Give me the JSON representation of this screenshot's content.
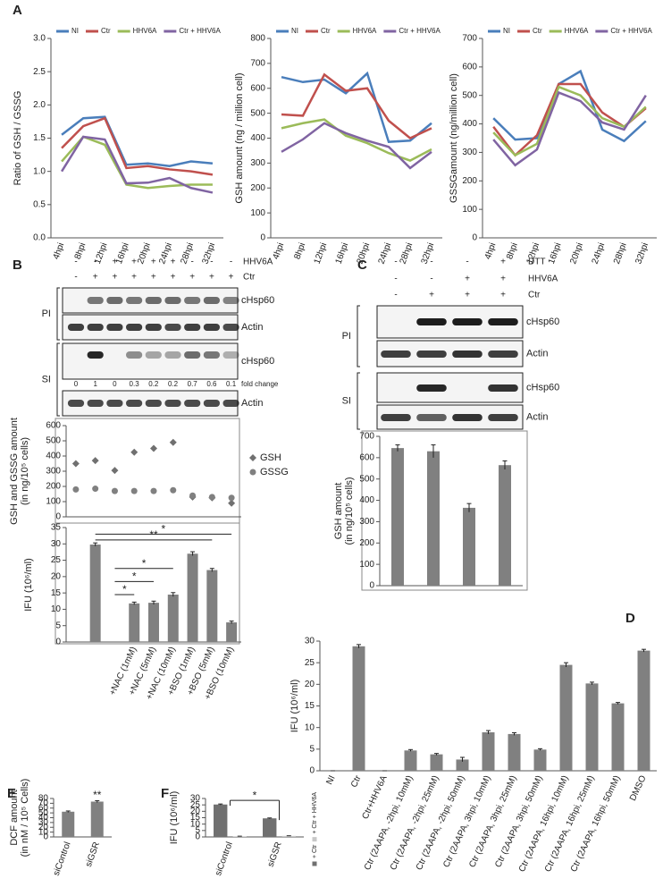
{
  "panel_labels": [
    "A",
    "B",
    "C",
    "D",
    "E",
    "F"
  ],
  "chart_data": [
    {
      "type": "line",
      "ylabel": [
        "Ratio of GSH / GSSG"
      ],
      "categories": [
        "4hpi",
        "8hpi",
        "12hpi",
        "16hpi",
        "20hpi",
        "24hpi",
        "28hpi",
        "32hpi"
      ],
      "ylim": [
        0,
        3
      ],
      "yticks": [
        {
          "value": 0,
          "label": "0.0"
        },
        {
          "value": 0.5,
          "label": "0.5"
        },
        {
          "value": 1,
          "label": "1.0"
        },
        {
          "value": 1.5,
          "label": "1.5"
        },
        {
          "value": 2,
          "label": "2.0"
        },
        {
          "value": 2.5,
          "label": "2.5"
        },
        {
          "value": 3,
          "label": "3.0"
        }
      ],
      "legend": "top",
      "series": [
        {
          "name": "NI",
          "color": "#4a7ebb",
          "values": [
            1.55,
            1.8,
            1.82,
            1.1,
            1.12,
            1.08,
            1.15,
            1.12
          ]
        },
        {
          "name": "Ctr",
          "color": "#c0504d",
          "values": [
            1.35,
            1.68,
            1.8,
            1.05,
            1.08,
            1.03,
            1.0,
            0.95
          ]
        },
        {
          "name": "HHV6A",
          "color": "#9bbb59",
          "values": [
            1.15,
            1.52,
            1.4,
            0.8,
            0.75,
            0.78,
            0.8,
            0.8
          ]
        },
        {
          "name": "Ctr + HHV6A",
          "color": "#8064a2",
          "values": [
            1.0,
            1.52,
            1.48,
            0.82,
            0.83,
            0.9,
            0.75,
            0.68
          ]
        }
      ]
    },
    {
      "type": "line",
      "ylabel": [
        "GSH amount (ng / million cell)"
      ],
      "categories": [
        "4hpi",
        "8hpi",
        "12hpi",
        "16hpi",
        "20hpi",
        "24hpi",
        "28hpi",
        "32hpi"
      ],
      "ylim": [
        0,
        800
      ],
      "yticks": [
        0,
        100,
        200,
        300,
        400,
        500,
        600,
        700,
        800
      ],
      "legend": "top",
      "series": [
        {
          "name": "NI",
          "color": "#4a7ebb",
          "values": [
            645,
            625,
            635,
            580,
            660,
            385,
            390,
            460
          ]
        },
        {
          "name": "Ctr",
          "color": "#c0504d",
          "values": [
            495,
            490,
            655,
            590,
            600,
            470,
            400,
            440
          ]
        },
        {
          "name": "HHV6A",
          "color": "#9bbb59",
          "values": [
            440,
            460,
            475,
            410,
            380,
            340,
            310,
            355
          ]
        },
        {
          "name": "Ctr + HHV6A",
          "color": "#8064a2",
          "values": [
            345,
            395,
            460,
            420,
            390,
            365,
            280,
            345
          ]
        }
      ]
    },
    {
      "type": "line",
      "ylabel": [
        "GSSGamount (ng/million cell)"
      ],
      "categories": [
        "4hpi",
        "8hpi",
        "12hpi",
        "16hpi",
        "20hpi",
        "24hpi",
        "28hpi",
        "32hpi"
      ],
      "ylim": [
        0,
        700
      ],
      "yticks": [
        0,
        100,
        200,
        300,
        400,
        500,
        600,
        700
      ],
      "legend": "top",
      "series": [
        {
          "name": "NI",
          "color": "#4a7ebb",
          "values": [
            420,
            345,
            350,
            540,
            585,
            380,
            340,
            410
          ]
        },
        {
          "name": "Ctr",
          "color": "#c0504d",
          "values": [
            390,
            290,
            360,
            540,
            540,
            440,
            390,
            455
          ]
        },
        {
          "name": "HHV6A",
          "color": "#9bbb59",
          "values": [
            370,
            290,
            330,
            530,
            500,
            420,
            390,
            460
          ]
        },
        {
          "name": "Ctr + HHV6A",
          "color": "#8064a2",
          "values": [
            345,
            255,
            310,
            510,
            480,
            405,
            380,
            500
          ]
        }
      ]
    },
    {
      "type": "scatter",
      "ylabel": [
        "GSH and GSSG amount",
        "(in ng/10⁵ cells)"
      ],
      "categories": [
        null,
        null,
        null,
        null,
        null,
        null,
        null,
        null,
        null
      ],
      "ylim": [
        0,
        600
      ],
      "yticks": [
        0,
        100,
        200,
        300,
        400,
        500,
        600
      ],
      "legend": "right",
      "series": [
        {
          "name": "GSH",
          "color": "#707070",
          "marker": "diamond",
          "values": [
            350,
            370,
            305,
            425,
            450,
            490,
            130,
            125,
            90
          ]
        },
        {
          "name": "GSSG",
          "color": "#808080",
          "marker": "circle",
          "values": [
            180,
            185,
            170,
            170,
            170,
            175,
            140,
            130,
            125
          ]
        }
      ]
    },
    {
      "type": "bar",
      "ylabel": [
        "IFU (10⁶/ml)"
      ],
      "categories": [
        null,
        null,
        null,
        "+NAC (1mM)",
        "+NAC (5mM)",
        "+NAC (10mM)",
        "+BSO (1mM)",
        "+BSO (5mM)",
        "+BSO (10mM)"
      ],
      "ylim": [
        0,
        35
      ],
      "yticks": [
        0,
        5,
        10,
        15,
        20,
        25,
        30,
        35
      ],
      "color": "#808080",
      "values": [
        null,
        29.8,
        null,
        11.8,
        12,
        14.5,
        27,
        22,
        6
      ],
      "errors": [
        null,
        0.5,
        null,
        0.4,
        0.5,
        0.6,
        0.6,
        0.5,
        0.4
      ],
      "annotations": [
        "*",
        "**",
        "*",
        "*",
        "*"
      ]
    },
    {
      "type": "bar",
      "ylabel": [
        "GSH amount",
        "(in ng/10⁵ cells)"
      ],
      "categories": [
        null,
        null,
        null,
        null
      ],
      "ylim": [
        0,
        700
      ],
      "yticks": [
        0,
        100,
        200,
        300,
        400,
        500,
        600,
        700
      ],
      "color": "#808080",
      "values": [
        645,
        630,
        365,
        565
      ],
      "errors": [
        15,
        30,
        20,
        20
      ]
    },
    {
      "type": "bar",
      "ylabel": [
        "IFU (10⁶/ml)"
      ],
      "categories": [
        "NI",
        "Ctr",
        "Ctr+HHV6A",
        "Ctr (2AAPA, -2hpi, 10mM)",
        "Ctr (2AAPA, -2hpi, 25mM)",
        "Ctr (2AAPA, -2hpi, 50mM)",
        "Ctr (2AAPA, 3hpi, 10mM)",
        "Ctr (2AAPA, 3hpi, 25mM)",
        "Ctr (2AAPA, 3hpi, 50mM)",
        "Ctr (2AAPA, 16hpi, 10mM)",
        "Ctr (2AAPA, 16hpi, 25mM)",
        "Ctr (2AAPA, 16hpi, 50mM)",
        "DMSO"
      ],
      "ylim": [
        0,
        30
      ],
      "yticks": [
        0,
        5,
        10,
        15,
        20,
        25,
        30
      ],
      "color": "#808080",
      "values": [
        0,
        28.8,
        0,
        4.7,
        3.8,
        2.6,
        8.9,
        8.5,
        4.9,
        24.5,
        20.2,
        15.6,
        27.8
      ],
      "errors": [
        0,
        0.4,
        0,
        0.2,
        0.2,
        0.5,
        0.4,
        0.3,
        0.2,
        0.5,
        0.3,
        0.2,
        0.3
      ]
    },
    {
      "type": "bar",
      "ylabel": [
        "DCF amount",
        "(in nM / 10⁵ Cells)"
      ],
      "categories": [
        "siControl",
        "siGSR"
      ],
      "ylim": [
        0,
        80
      ],
      "yticks": [
        0,
        10,
        20,
        30,
        40,
        50,
        60,
        70,
        80
      ],
      "color": "#808080",
      "values": [
        52.5,
        73.5
      ],
      "errors": [
        1.5,
        2
      ],
      "annotations": [
        "**"
      ]
    },
    {
      "type": "bar",
      "ylabel": [
        "IFU (10⁶/ml)"
      ],
      "categories": [
        "siControl",
        "siGSR"
      ],
      "ylim": [
        0,
        30
      ],
      "yticks": [
        0,
        5,
        10,
        15,
        20,
        25,
        30
      ],
      "legend": "right-vertical",
      "series": [
        {
          "name": "+ Ctr",
          "color": "#707070",
          "values": [
            25.3,
            14.5
          ],
          "errors": [
            0.4,
            0.3
          ]
        },
        {
          "name": "+ Ctr + HHV6A",
          "color": "#c8c8c8",
          "values": [
            0.5,
            0.8
          ],
          "errors": [
            0.1,
            0.1
          ]
        }
      ],
      "annotations": [
        "*"
      ]
    }
  ],
  "blots": [
    {
      "conditions": [
        {
          "label": "HHV6A",
          "signs": [
            "-",
            "-",
            "+",
            "+",
            "+",
            "+",
            "-",
            "-",
            "-"
          ]
        },
        {
          "label": "Ctr",
          "signs": [
            "-",
            "+",
            "+",
            "+",
            "+",
            "+",
            "+",
            "+",
            "+"
          ]
        }
      ],
      "groups": [
        {
          "label": "PI",
          "rows": [
            "cHsp60",
            "Actin"
          ]
        },
        {
          "label": "SI",
          "rows": [
            "cHsp60",
            "Actin"
          ]
        }
      ],
      "fold_change": [
        0,
        1,
        0,
        0.3,
        0.2,
        0.2,
        0.7,
        0.6,
        0.1
      ],
      "fold_change_label": "fold change"
    },
    {
      "conditions": [
        {
          "label": "DTT",
          "signs": [
            "-",
            "-",
            "-",
            "+"
          ]
        },
        {
          "label": "HHV6A",
          "signs": [
            "-",
            "-",
            "+",
            "+"
          ]
        },
        {
          "label": "Ctr",
          "signs": [
            "-",
            "+",
            "+",
            "+"
          ]
        }
      ],
      "groups": [
        {
          "label": "PI",
          "rows": [
            "cHsp60",
            "Actin"
          ]
        },
        {
          "label": "SI",
          "rows": [
            "cHsp60",
            "Actin"
          ]
        }
      ]
    }
  ]
}
